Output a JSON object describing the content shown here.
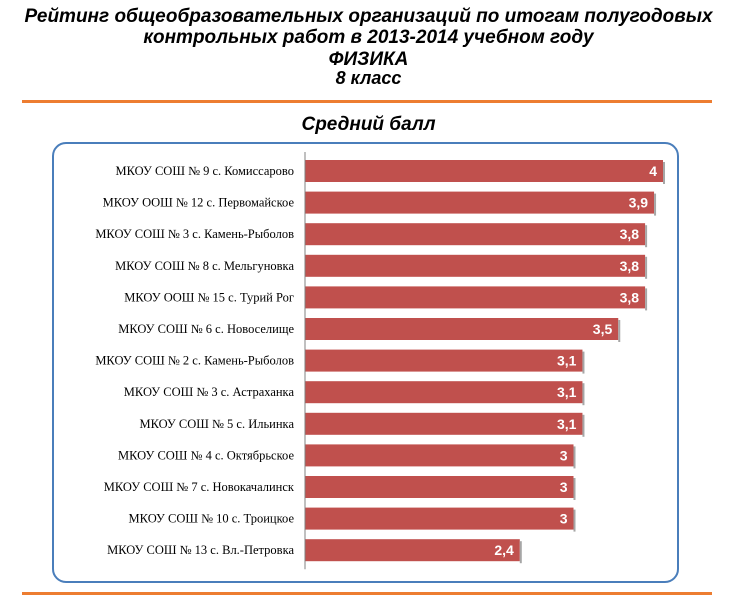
{
  "title": {
    "line1": "Рейтинг общеобразовательных  организаций  по итогам полугодовых",
    "line2": "контрольных работ в 2013-2014 учебном году",
    "subject": "ФИЗИКА",
    "grade": "8 класс"
  },
  "colors": {
    "accent_rule": "#ed7d31",
    "frame_border": "#4a7ebb",
    "bar_fill": "#c0504d",
    "bar_label": "#ffffff"
  },
  "chart_data": {
    "type": "bar",
    "orientation": "horizontal",
    "title": "Средний балл",
    "categories": [
      "МКОУ СОШ № 9 с. Комиссарово",
      "МКОУ ООШ № 12 с. Первомайское",
      "МКОУ СОШ № 3 с. Камень-Рыболов",
      "МКОУ СОШ № 8 с. Мельгуновка",
      "МКОУ ООШ № 15 с. Турий Рог",
      "МКОУ СОШ № 6 с. Новоселище",
      "МКОУ СОШ № 2 с. Камень-Рыболов",
      "МКОУ СОШ № 3 с. Астраханка",
      "МКОУ СОШ № 5 с. Ильинка",
      "МКОУ СОШ № 4 с. Октябрьское",
      "МКОУ СОШ № 7 с. Новокачалинск",
      "МКОУ СОШ № 10 с. Троицкое",
      "МКОУ СОШ № 13 с. Вл.-Петровка"
    ],
    "values": [
      4,
      3.9,
      3.8,
      3.8,
      3.8,
      3.5,
      3.1,
      3.1,
      3.1,
      3,
      3,
      3,
      2.4
    ],
    "value_labels": [
      "4",
      "3,9",
      "3,8",
      "3,8",
      "3,8",
      "3,5",
      "3,1",
      "3,1",
      "3,1",
      "3",
      "3",
      "3",
      "2,4"
    ],
    "xlim": [
      0,
      4
    ],
    "grid": false,
    "legend": "none"
  }
}
